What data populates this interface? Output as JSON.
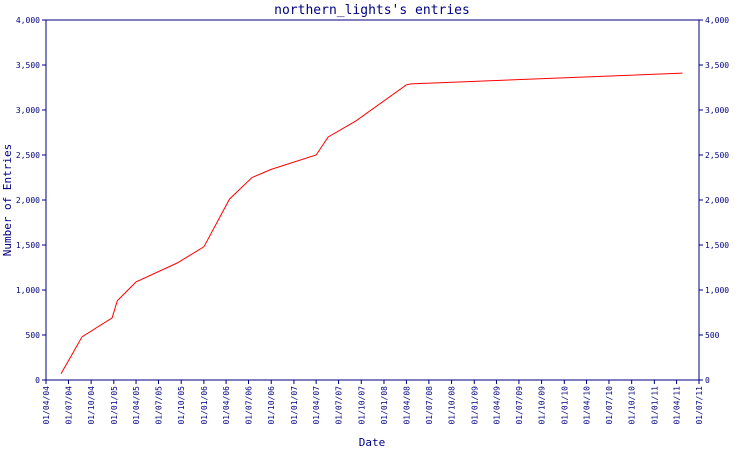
{
  "chart_data": {
    "type": "line",
    "title": "northern_lights's entries",
    "xlabel": "Date",
    "ylabel": "Number of Entries",
    "ylim": [
      0,
      4000
    ],
    "grid": false,
    "legend": "none",
    "colors": {
      "axis": "#000080",
      "text": "#000080",
      "line": "#ff0000",
      "background": "#ffffff"
    },
    "y_ticks": [
      0,
      500,
      1000,
      1500,
      2000,
      2500,
      3000,
      3500,
      4000
    ],
    "y_tick_labels": [
      "0",
      "500",
      "1,000",
      "1,500",
      "2,000",
      "2,500",
      "3,000",
      "3,500",
      "4,000"
    ],
    "x_ticks": [
      "2004-04-01",
      "2004-07-01",
      "2004-10-01",
      "2005-01-01",
      "2005-04-01",
      "2005-07-01",
      "2005-10-01",
      "2006-01-01",
      "2006-04-01",
      "2006-07-01",
      "2006-10-01",
      "2007-01-01",
      "2007-04-01",
      "2007-07-01",
      "2007-10-01",
      "2008-01-01",
      "2008-04-01",
      "2008-07-01",
      "2008-10-01",
      "2009-01-01",
      "2009-04-01",
      "2009-07-01",
      "2009-10-01",
      "2010-01-01",
      "2010-04-01",
      "2010-07-01",
      "2010-10-01",
      "2011-01-01",
      "2011-04-01",
      "2011-07-01"
    ],
    "x_tick_labels": [
      "01/04/04",
      "01/07/04",
      "01/10/04",
      "01/01/05",
      "01/04/05",
      "01/07/05",
      "01/10/05",
      "01/01/06",
      "01/04/06",
      "01/07/06",
      "01/10/06",
      "01/01/07",
      "01/04/07",
      "01/07/07",
      "01/10/07",
      "01/01/08",
      "01/04/08",
      "01/07/08",
      "01/10/08",
      "01/01/09",
      "01/04/09",
      "01/07/09",
      "01/10/09",
      "01/01/10",
      "01/04/10",
      "01/07/10",
      "01/10/10",
      "01/01/11",
      "01/04/11",
      "01/07/11"
    ],
    "series": [
      {
        "x": [
          "2004-06-01",
          "2004-07-15",
          "2004-08-25",
          "2004-12-25",
          "2005-01-15",
          "2005-04-01",
          "2005-09-15",
          "2006-01-01",
          "2006-04-15",
          "2006-07-15",
          "2006-10-01",
          "2007-04-01",
          "2007-05-20",
          "2007-09-10",
          "2008-04-01",
          "2008-04-20",
          "2011-04-25"
        ],
        "y": [
          70,
          280,
          480,
          690,
          880,
          1090,
          1300,
          1480,
          2010,
          2250,
          2340,
          2500,
          2700,
          2880,
          3280,
          3290,
          3410
        ]
      }
    ]
  }
}
